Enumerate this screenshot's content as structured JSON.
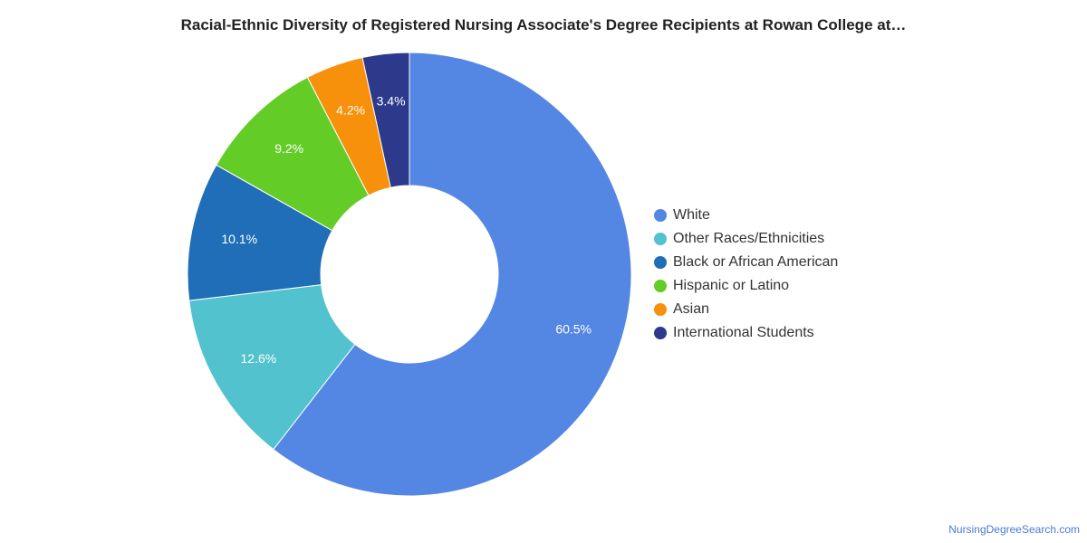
{
  "chart_data": {
    "type": "pie",
    "donut": true,
    "title": "Racial-Ethnic Diversity of Registered Nursing Associate's Degree Recipients at Rowan College at…",
    "categories": [
      "White",
      "Other Races/Ethnicities",
      "Black or African American",
      "Hispanic or Latino",
      "Asian",
      "International Students"
    ],
    "values": [
      60.5,
      12.6,
      10.1,
      9.2,
      4.2,
      3.4
    ],
    "value_labels": [
      "60.5%",
      "12.6%",
      "10.1%",
      "9.2%",
      "4.2%",
      "3.4%"
    ],
    "colors": [
      "#5486e4",
      "#52c2ce",
      "#1f6eb7",
      "#63cc27",
      "#f7900a",
      "#2d3a8c"
    ],
    "legend_placement": "right"
  },
  "watermark": "NursingDegreeSearch.com"
}
